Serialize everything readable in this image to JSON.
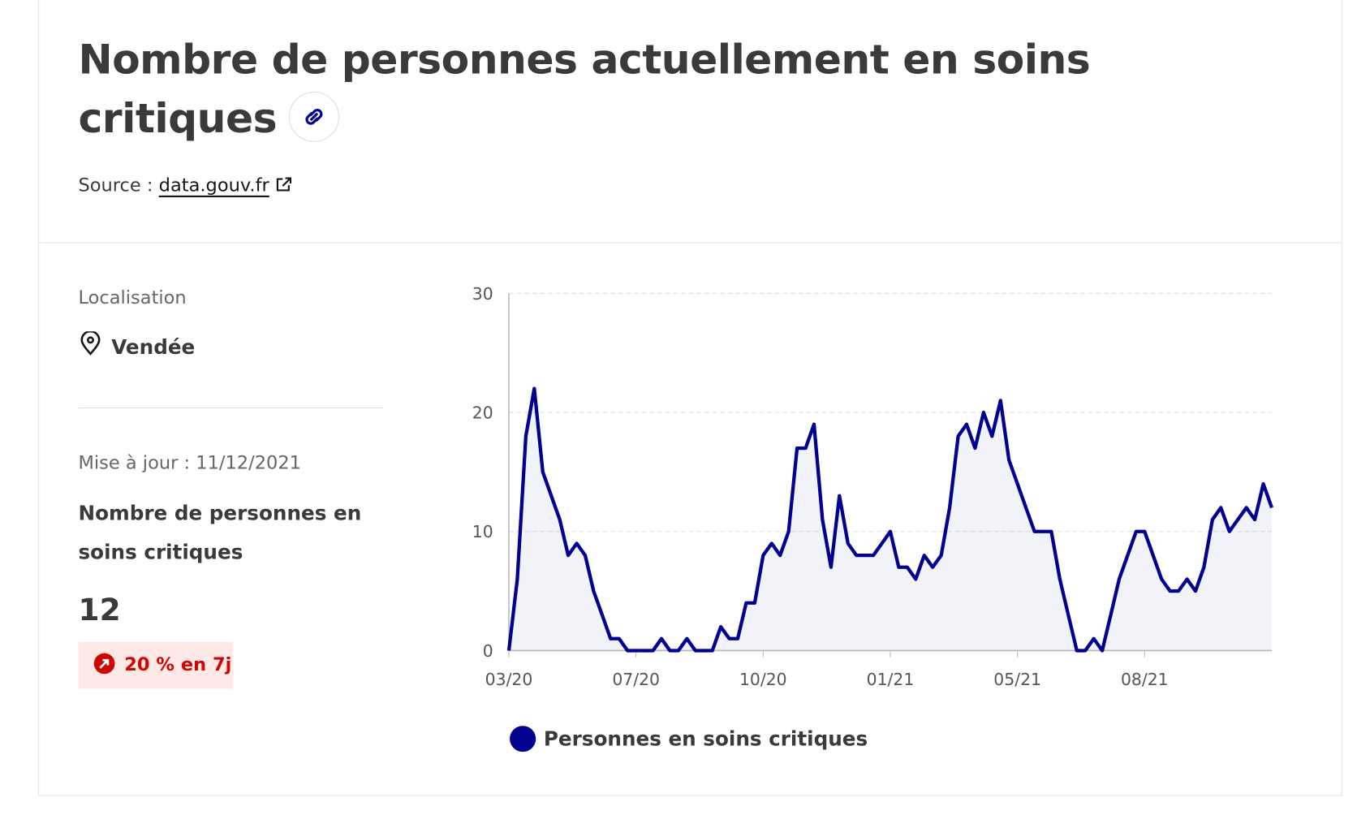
{
  "header": {
    "title": "Nombre de personnes actuellement en soins critiques",
    "source_label": "Source :",
    "source_link": "data.gouv.fr"
  },
  "sidebar": {
    "location_label": "Localisation",
    "location": "Vendée",
    "updated": "Mise à jour : 11/12/2021",
    "indicator_label": "Nombre de personnes en soins critiques",
    "indicator_value": 12,
    "trend": "20 % en 7j"
  },
  "chart_data": {
    "type": "line",
    "categories": [
      "03/20",
      null,
      null,
      null,
      null,
      null,
      null,
      null,
      null,
      null,
      null,
      null,
      null,
      null,
      null,
      "07/20",
      null,
      null,
      null,
      null,
      null,
      null,
      null,
      null,
      null,
      null,
      null,
      null,
      null,
      null,
      "10/20",
      null,
      null,
      null,
      null,
      null,
      null,
      null,
      null,
      null,
      null,
      null,
      null,
      null,
      null,
      "01/21",
      null,
      null,
      null,
      null,
      null,
      null,
      null,
      null,
      null,
      null,
      null,
      null,
      null,
      null,
      "05/21",
      null,
      null,
      null,
      null,
      null,
      null,
      null,
      null,
      null,
      null,
      null,
      null,
      null,
      null,
      "08/21",
      null,
      null,
      null,
      null,
      null,
      null,
      null,
      null,
      null,
      null,
      null,
      null,
      null,
      null,
      null
    ],
    "series": [
      {
        "name": "Personnes en soins critiques",
        "color": "#000091",
        "values": [
          0,
          6,
          18,
          22,
          15,
          13,
          11,
          8,
          9,
          8,
          5,
          3,
          1,
          1,
          0,
          0,
          0,
          0,
          1,
          0,
          0,
          1,
          0,
          0,
          0,
          2,
          1,
          1,
          4,
          4,
          8,
          9,
          8,
          10,
          17,
          17,
          19,
          11,
          7,
          13,
          9,
          8,
          8,
          8,
          9,
          10,
          7,
          7,
          6,
          8,
          7,
          8,
          12,
          18,
          19,
          17,
          20,
          18,
          21,
          16,
          14,
          12,
          10,
          10,
          10,
          6,
          3,
          0,
          0,
          1,
          0,
          3,
          6,
          8,
          10,
          10,
          8,
          6,
          5,
          5,
          6,
          5,
          7,
          11,
          12,
          10,
          11,
          12,
          11,
          14,
          12
        ]
      }
    ],
    "ylim": [
      0,
      30
    ],
    "yticks": [
      0,
      10,
      20,
      30
    ],
    "grid": true
  }
}
